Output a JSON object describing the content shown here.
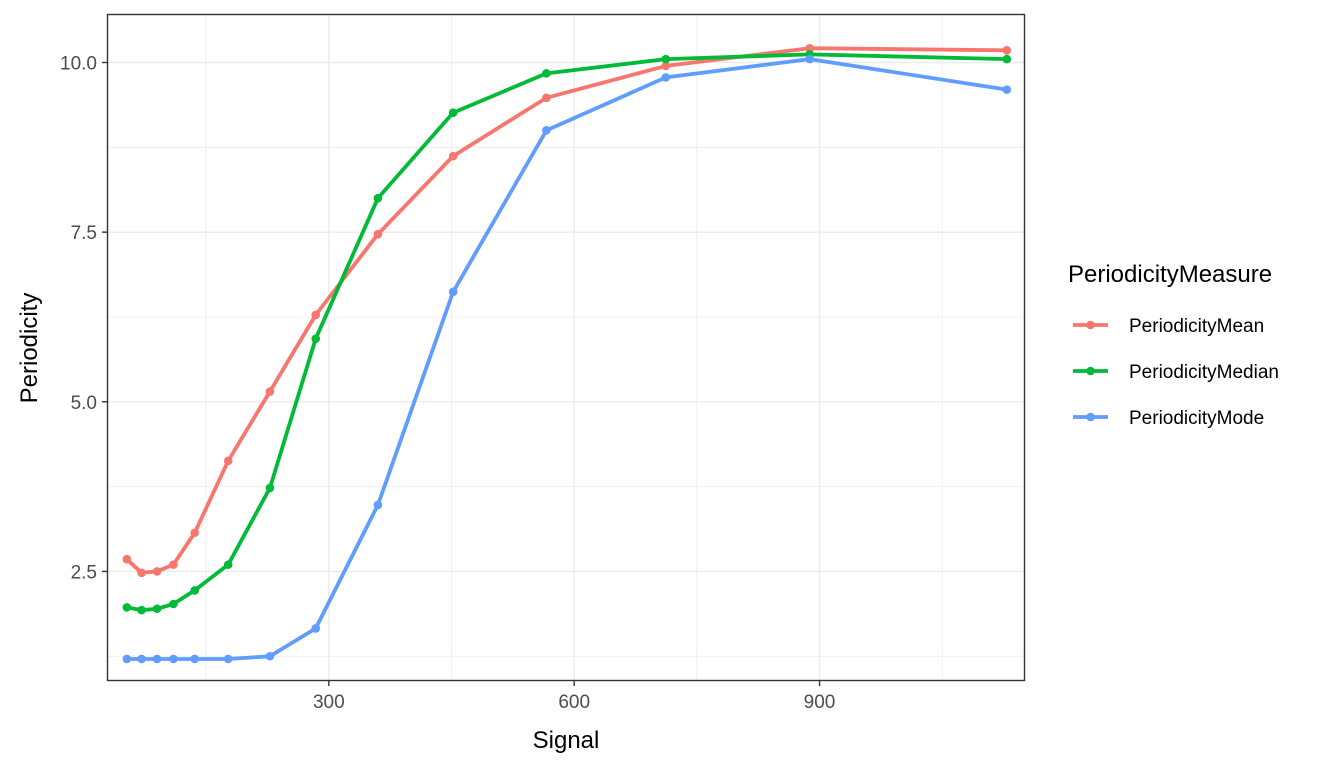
{
  "chart_data": {
    "type": "line",
    "xlabel": "Signal",
    "ylabel": "Periodicity",
    "xlim": [
      30,
      1150
    ],
    "ylim": [
      0.9,
      10.7
    ],
    "x_ticks": [
      300,
      600,
      900
    ],
    "y_ticks": [
      2.5,
      5.0,
      7.5,
      10.0
    ],
    "x_tick_labels": [
      "300",
      "600",
      "900"
    ],
    "y_tick_labels": [
      "2.5",
      "5.0",
      "7.5",
      "10.0"
    ],
    "grid": true,
    "legend": {
      "title": "PeriodicityMeasure",
      "position": "right"
    },
    "x": [
      53,
      71,
      90,
      110,
      136,
      177,
      228,
      284,
      360,
      452,
      566,
      712,
      888,
      1129
    ],
    "series": [
      {
        "name": "PeriodicityMean",
        "color": "#F8766D",
        "values": [
          2.68,
          2.48,
          2.5,
          2.6,
          3.07,
          4.13,
          5.15,
          6.28,
          7.47,
          8.62,
          9.48,
          9.95,
          10.21,
          10.18
        ]
      },
      {
        "name": "PeriodicityMedian",
        "color": "#00BA38",
        "values": [
          1.97,
          1.93,
          1.95,
          2.02,
          2.22,
          2.6,
          3.73,
          5.93,
          8.0,
          9.26,
          9.84,
          10.05,
          10.12,
          10.05
        ]
      },
      {
        "name": "PeriodicityMode",
        "color": "#619CFF",
        "values": [
          1.21,
          1.21,
          1.21,
          1.21,
          1.21,
          1.21,
          1.25,
          1.66,
          3.48,
          6.62,
          9.0,
          9.78,
          10.05,
          9.6
        ]
      }
    ]
  }
}
